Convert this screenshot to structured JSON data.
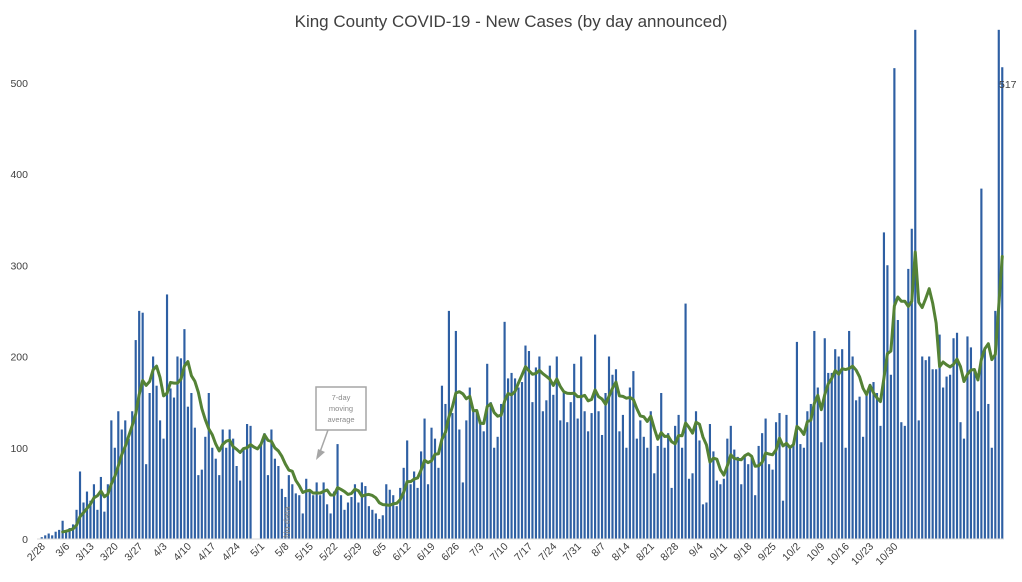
{
  "chart_data": {
    "type": "bar",
    "title": "King County COVID-19 - New Cases (by day announced)",
    "xlabel": "",
    "ylabel": "",
    "ylim": [
      0,
      560
    ],
    "yticks": [
      0,
      100,
      200,
      300,
      400,
      500
    ],
    "grid": false,
    "legend": "none",
    "start_date": "2/28",
    "x_tick_labels": [
      "2/28",
      "3/6",
      "3/13",
      "3/20",
      "3/27",
      "4/3",
      "4/10",
      "4/17",
      "4/24",
      "5/1",
      "5/8",
      "5/15",
      "5/22",
      "5/29",
      "6/5",
      "6/12",
      "6/19",
      "6/26",
      "7/3",
      "7/10",
      "7/17",
      "7/24",
      "7/31",
      "8/7",
      "8/14",
      "8/21",
      "8/28",
      "9/4",
      "9/11",
      "9/18",
      "9/25",
      "10/2",
      "10/9",
      "10/16",
      "10/23",
      "10/30"
    ],
    "series": [
      {
        "type": "bar",
        "color": "#2e5fa3",
        "values": [
          2,
          4,
          6,
          4,
          8,
          10,
          20,
          8,
          12,
          16,
          32,
          74,
          40,
          52,
          42,
          60,
          32,
          68,
          30,
          60,
          130,
          100,
          140,
          120,
          130,
          110,
          140,
          218,
          250,
          248,
          82,
          160,
          200,
          168,
          130,
          110,
          268,
          165,
          155,
          200,
          198,
          230,
          145,
          160,
          122,
          70,
          76,
          112,
          160,
          100,
          88,
          70,
          120,
          100,
          120,
          110,
          80,
          64,
          100,
          126,
          124,
          0,
          0,
          105,
          116,
          70,
          120,
          88,
          80,
          55,
          46,
          70,
          60,
          50,
          48,
          28,
          66,
          52,
          48,
          62,
          48,
          62,
          38,
          28,
          52,
          104,
          48,
          32,
          40,
          46,
          60,
          40,
          62,
          58,
          36,
          32,
          28,
          22,
          26,
          60,
          54,
          48,
          36,
          56,
          78,
          108,
          60,
          74,
          56,
          96,
          132,
          60,
          122,
          110,
          78,
          168,
          148,
          250,
          138,
          228,
          120,
          62,
          130,
          166,
          140,
          140,
          130,
          118,
          192,
          150,
          100,
          112,
          148,
          238,
          176,
          182,
          176,
          166,
          172,
          212,
          206,
          150,
          188,
          200,
          140,
          152,
          190,
          158,
          200,
          130,
          160,
          128,
          150,
          192,
          132,
          200,
          140,
          118,
          138,
          224,
          140,
          114,
          160,
          200,
          180,
          186,
          118,
          136,
          100,
          166,
          184,
          110,
          130,
          112,
          100,
          140,
          72,
          102,
          160,
          100,
          116,
          56,
          124,
          136,
          100,
          258,
          66,
          72,
          140,
          108,
          38,
          40,
          126,
          96,
          64,
          60,
          66,
          110,
          124,
          98,
          90,
          60,
          90,
          82,
          90,
          48,
          102,
          116,
          132,
          82,
          76,
          128,
          138,
          42,
          136,
          100,
          104,
          216,
          104,
          100,
          140,
          148,
          228,
          166,
          106,
          220,
          182,
          182,
          208,
          200,
          208,
          100,
          228,
          200,
          152,
          156,
          112,
          160,
          170,
          172,
          160,
          124,
          336,
          300,
          180,
          516,
          240,
          128,
          124,
          296,
          340,
          558,
          130,
          200,
          196,
          200,
          186,
          186,
          224,
          166,
          178,
          180,
          220,
          226,
          128,
          110,
          222,
          210,
          184,
          140,
          384,
          210,
          148,
          100,
          250,
          558,
          517
        ]
      },
      {
        "type": "line",
        "name": "7-day moving average",
        "color": "#548235"
      }
    ],
    "annotations": {
      "no_data": "No data",
      "moving_average_label": [
        "7-day",
        "moving",
        "average"
      ],
      "last_value_label": "517"
    }
  }
}
